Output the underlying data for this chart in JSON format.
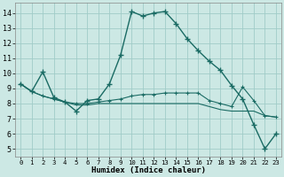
{
  "xlabel": "Humidex (Indice chaleur)",
  "ylabel": "",
  "bg_color": "#cce8e4",
  "grid_color": "#a0ccc8",
  "line_color": "#1a6b64",
  "x_ticks": [
    0,
    1,
    2,
    3,
    4,
    5,
    6,
    7,
    8,
    9,
    10,
    11,
    12,
    13,
    14,
    15,
    16,
    17,
    18,
    19,
    20,
    21,
    22,
    23
  ],
  "y_ticks": [
    5,
    6,
    7,
    8,
    9,
    10,
    11,
    12,
    13,
    14
  ],
  "xlim": [
    -0.5,
    23.5
  ],
  "ylim": [
    4.5,
    14.7
  ],
  "line1_x": [
    0,
    1,
    2,
    3,
    4,
    5,
    6,
    7,
    8,
    9,
    10,
    11,
    12,
    13,
    14,
    15,
    16,
    17,
    18,
    19,
    20,
    21,
    22,
    23
  ],
  "line1_y": [
    9.3,
    8.8,
    10.1,
    8.4,
    8.1,
    7.5,
    8.2,
    8.3,
    9.3,
    11.2,
    14.1,
    13.8,
    14.0,
    14.1,
    13.3,
    12.3,
    11.5,
    10.8,
    10.2,
    9.2,
    8.3,
    6.6,
    5.0,
    6.0
  ],
  "line2_x": [
    0,
    1,
    2,
    3,
    4,
    5,
    6,
    7,
    8,
    9,
    10,
    11,
    12,
    13,
    14,
    15,
    16,
    17,
    18,
    19,
    20,
    21,
    22,
    23
  ],
  "line2_y": [
    9.3,
    8.8,
    8.5,
    8.3,
    8.1,
    8.0,
    8.0,
    8.1,
    8.2,
    8.3,
    8.5,
    8.6,
    8.6,
    8.7,
    8.7,
    8.7,
    8.7,
    8.2,
    8.0,
    7.8,
    9.1,
    8.2,
    7.2,
    7.1
  ],
  "line3_x": [
    0,
    1,
    2,
    3,
    4,
    5,
    6,
    7,
    8,
    9,
    10,
    11,
    12,
    13,
    14,
    15,
    16,
    17,
    18,
    19,
    20,
    21,
    22,
    23
  ],
  "line3_y": [
    9.3,
    8.8,
    8.5,
    8.3,
    8.1,
    7.9,
    7.9,
    8.0,
    8.0,
    8.0,
    8.0,
    8.0,
    8.0,
    8.0,
    8.0,
    8.0,
    8.0,
    7.8,
    7.6,
    7.5,
    7.5,
    7.5,
    7.2,
    7.1
  ],
  "marker1_x": [
    0,
    1,
    2,
    3,
    4,
    5,
    6,
    7,
    8,
    9,
    10,
    11,
    12,
    13,
    14,
    15,
    16,
    17,
    18,
    19,
    20,
    21,
    22,
    23
  ],
  "marker2_x": [
    0,
    2,
    3,
    5,
    6,
    7,
    9,
    10,
    11,
    12,
    13,
    14,
    15,
    16,
    17,
    18,
    19,
    20,
    21,
    22,
    23
  ]
}
